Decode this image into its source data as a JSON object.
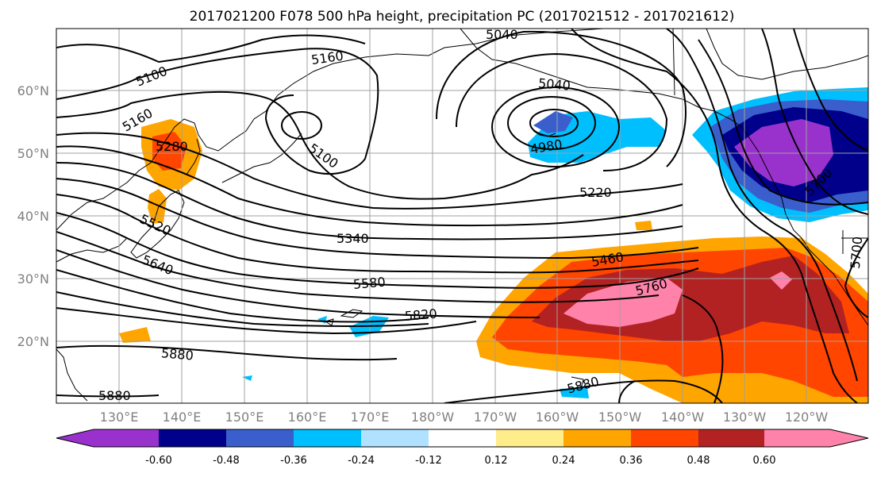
{
  "title": "2017021200 F078 500 hPa height, precipitation PC (2017021512 - 2017021612)",
  "lon_labels": [
    "130°E",
    "140°E",
    "150°E",
    "160°E",
    "170°E",
    "180°W",
    "170°W",
    "160°W",
    "150°W",
    "140°W",
    "130°W",
    "120°W"
  ],
  "lat_labels": [
    "60°N",
    "50°N",
    "40°N",
    "30°N",
    "20°N"
  ],
  "colorbar": {
    "colors": [
      "#9932cc",
      "#00008b",
      "#3a5fcd",
      "#00bfff",
      "#b0e2ff",
      "#ffffff",
      "#ffec8b",
      "#ffa500",
      "#ff4500",
      "#b22222",
      "#ff82ab"
    ],
    "tick_labels": [
      "-0.60",
      "-0.48",
      "-0.36",
      "-0.24",
      "-0.12",
      "0.12",
      "0.24",
      "0.36",
      "0.48",
      "0.60"
    ]
  },
  "contour_labels": [
    "5040",
    "5100",
    "5160",
    "5160",
    "5280",
    "5100",
    "5040",
    "4980",
    "5220",
    "5340",
    "5460",
    "5520",
    "5640",
    "5580",
    "5760",
    "5700",
    "5820",
    "5880",
    "5880",
    "5880",
    "5700"
  ]
}
